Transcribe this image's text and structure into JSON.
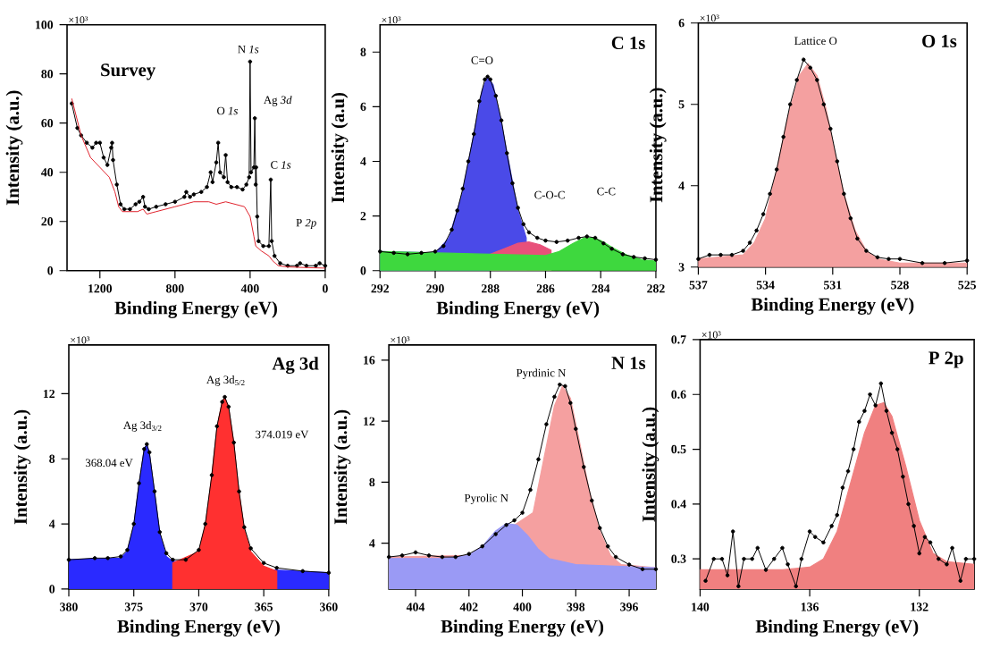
{
  "chart_data": [
    {
      "type": "line",
      "title": "Survey",
      "xlabel": "Binding Energy (eV)",
      "ylabel": "Intensity (a.u.)",
      "xlim": [
        1375,
        0
      ],
      "xticks": [
        1200,
        800,
        400,
        0
      ],
      "ylim": [
        0,
        100
      ],
      "yticks": [
        0,
        20,
        40,
        60,
        80,
        100
      ],
      "annotations": [
        "×10³",
        "N *1s*",
        "O *1s*",
        "Ag *3d*",
        "C *1s*",
        "P *2p*"
      ],
      "series": [
        {
          "color": "#000000",
          "marker": "circle",
          "x": [
            1350,
            1320,
            1300,
            1270,
            1240,
            1220,
            1200,
            1180,
            1160,
            1140,
            1135,
            1130,
            1110,
            1090,
            1070,
            1040,
            1010,
            990,
            970,
            960,
            940,
            900,
            850,
            800,
            750,
            740,
            720,
            700,
            660,
            630,
            610,
            600,
            580,
            570,
            560,
            540,
            530,
            520,
            500,
            470,
            440,
            420,
            405,
            400,
            395,
            380,
            375,
            370,
            368,
            362,
            355,
            330,
            300,
            290,
            285,
            270,
            240,
            200,
            150,
            134,
            100,
            50,
            30,
            0
          ],
          "values": [
            68,
            58,
            55,
            52,
            50,
            52,
            52,
            46,
            43,
            50,
            52,
            45,
            35,
            27,
            25,
            25,
            27,
            28,
            30,
            26,
            25,
            26,
            27,
            28,
            30,
            32,
            30,
            31,
            32,
            34,
            40,
            36,
            44,
            52,
            40,
            38,
            47,
            36,
            34,
            34,
            33,
            35,
            38,
            85,
            40,
            42,
            62,
            35,
            42,
            22,
            12,
            10,
            10,
            37,
            12,
            6,
            3,
            2,
            2,
            3,
            2,
            2,
            3,
            2
          ]
        },
        {
          "color": "#e0202a",
          "x": [
            1350,
            1300,
            1250,
            1200,
            1150,
            1120,
            1100,
            1080,
            1000,
            970,
            950,
            900,
            800,
            700,
            650,
            620,
            580,
            530,
            480,
            430,
            400,
            380,
            370,
            340,
            300,
            280,
            250,
            200,
            0
          ],
          "values": [
            70,
            55,
            46,
            42,
            38,
            32,
            26,
            24,
            24,
            25,
            23,
            24,
            26,
            28,
            28,
            28,
            27,
            28,
            27,
            26,
            22,
            14,
            10,
            8,
            6,
            4,
            2,
            1.5,
            1
          ]
        }
      ]
    },
    {
      "type": "line",
      "title": "C 1s",
      "xlabel": "Binding Energy (eV)",
      "ylabel": "Intensity (a.u)",
      "xlim": [
        292,
        282
      ],
      "xticks": [
        292,
        290,
        288,
        286,
        284,
        282
      ],
      "ylim": [
        0,
        9
      ],
      "yticks": [
        0,
        2,
        4,
        6,
        8
      ],
      "annotations": [
        "×10³",
        "C=O",
        "C-O-C",
        "C-C"
      ],
      "series": [
        {
          "type": "area",
          "color": "#4a4ae8",
          "x": [
            292,
            290,
            289.5,
            289,
            288.6,
            288.3,
            288.1,
            287.9,
            287.6,
            287.3,
            287.0,
            286.7
          ],
          "values": [
            0.7,
            0.65,
            1.2,
            2.9,
            5.0,
            6.6,
            7.1,
            6.8,
            5.4,
            3.8,
            2.2,
            1.2
          ]
        },
        {
          "type": "area",
          "color": "#e8507a",
          "x": [
            288,
            287.5,
            287,
            286.6,
            286.2,
            285.8
          ],
          "values": [
            0.6,
            0.8,
            1.0,
            1.05,
            0.95,
            0.75
          ]
        },
        {
          "type": "area",
          "color": "#3ed83e",
          "x": [
            292,
            290,
            288,
            286,
            285.5,
            285,
            284.6,
            284.3,
            284,
            283.5,
            283,
            282.5,
            282
          ],
          "values": [
            0.7,
            0.65,
            0.6,
            0.55,
            0.7,
            1.0,
            1.2,
            1.2,
            1.1,
            0.8,
            0.55,
            0.4,
            0.35
          ]
        },
        {
          "color": "#000000",
          "marker": "circle",
          "x": [
            292,
            291.5,
            291,
            290.5,
            290,
            289.7,
            289.4,
            289.2,
            289,
            288.8,
            288.6,
            288.4,
            288.2,
            288.1,
            288.0,
            287.8,
            287.6,
            287.4,
            287.2,
            287.0,
            286.8,
            286.6,
            286.3,
            286.0,
            285.6,
            285.2,
            284.8,
            284.5,
            284.2,
            283.9,
            283.6,
            283.2,
            282.8,
            282.4,
            282
          ],
          "values": [
            0.7,
            0.65,
            0.6,
            0.65,
            0.7,
            0.9,
            1.5,
            2.2,
            3.0,
            4.0,
            5.0,
            6.2,
            7.0,
            7.1,
            7.0,
            6.4,
            5.5,
            4.3,
            3.2,
            2.3,
            1.7,
            1.4,
            1.2,
            1.1,
            1.05,
            1.1,
            1.2,
            1.25,
            1.2,
            1.0,
            0.8,
            0.6,
            0.5,
            0.45,
            0.4
          ]
        }
      ]
    },
    {
      "type": "line",
      "title": "O 1s",
      "xlabel": "Binding Energy (eV)",
      "ylabel": "Intensity (a.u.)",
      "xlim": [
        537,
        525
      ],
      "xticks": [
        537,
        534,
        531,
        528,
        525
      ],
      "ylim": [
        3,
        6
      ],
      "yticks": [
        3,
        4,
        5,
        6
      ],
      "annotations": [
        "×10³",
        "Lattice O"
      ],
      "series": [
        {
          "type": "area",
          "color": "#f4a0a0",
          "x": [
            537,
            535,
            534.5,
            534,
            533.5,
            533,
            532.5,
            532.1,
            531.7,
            531.3,
            530.9,
            530.5,
            530,
            529.5,
            529,
            528,
            525
          ],
          "values": [
            3.1,
            3.15,
            3.3,
            3.6,
            4.2,
            4.85,
            5.35,
            5.5,
            5.35,
            4.95,
            4.4,
            3.9,
            3.45,
            3.2,
            3.1,
            3.05,
            3.05
          ]
        },
        {
          "color": "#000000",
          "marker": "circle",
          "x": [
            537,
            536.5,
            536,
            535.5,
            535,
            534.7,
            534.4,
            534.1,
            533.8,
            533.5,
            533.2,
            532.9,
            532.6,
            532.3,
            532.0,
            531.7,
            531.4,
            531.1,
            530.8,
            530.5,
            530.2,
            529.9,
            529.5,
            529,
            528.5,
            528,
            527,
            526,
            525
          ],
          "values": [
            3.1,
            3.15,
            3.15,
            3.15,
            3.2,
            3.3,
            3.45,
            3.65,
            3.9,
            4.2,
            4.6,
            5.0,
            5.3,
            5.55,
            5.45,
            5.3,
            5.0,
            4.7,
            4.3,
            3.9,
            3.6,
            3.35,
            3.2,
            3.12,
            3.1,
            3.1,
            3.05,
            3.05,
            3.08
          ]
        }
      ]
    },
    {
      "type": "line",
      "title": "Ag 3d",
      "xlabel": "Binding Energy (eV)",
      "ylabel": "Intensity (a.u.)",
      "xlim": [
        380,
        360
      ],
      "xticks": [
        380,
        375,
        370,
        365,
        360
      ],
      "ylim": [
        0,
        15
      ],
      "yticks": [
        0,
        4,
        8,
        12
      ],
      "annotations": [
        "×10³",
        "Ag 3d$_{3/2}$",
        "Ag 3d$_{5/2}$",
        "368.04 eV",
        "374.019 eV"
      ],
      "series": [
        {
          "type": "area",
          "color": "#2a2aff",
          "x": [
            380,
            376,
            375.5,
            375,
            374.6,
            374.2,
            374.0,
            373.8,
            373.4,
            373,
            372.5,
            372,
            365,
            360
          ],
          "values": [
            1.8,
            1.9,
            2.3,
            3.9,
            6.4,
            8.6,
            8.9,
            8.3,
            5.9,
            3.4,
            2.0,
            1.7,
            1.2,
            1.0
          ]
        },
        {
          "type": "area",
          "color": "#ff3030",
          "x": [
            372,
            370,
            369.5,
            369,
            368.6,
            368.2,
            368,
            367.7,
            367.3,
            366.9,
            366.5,
            366,
            365,
            364
          ],
          "values": [
            1.6,
            2.3,
            3.9,
            6.9,
            9.9,
            11.5,
            11.8,
            11.1,
            8.9,
            5.9,
            3.7,
            2.3,
            1.4,
            1.1
          ]
        },
        {
          "color": "#000000",
          "marker": "circle",
          "x": [
            380,
            378,
            377,
            376,
            375.5,
            375,
            374.6,
            374.2,
            374.0,
            373.8,
            373.4,
            373,
            372.5,
            372,
            371,
            370,
            369.5,
            369,
            368.6,
            368.2,
            368.0,
            367.7,
            367.3,
            366.9,
            366.5,
            366,
            365,
            364,
            362,
            360
          ],
          "values": [
            1.8,
            1.9,
            1.9,
            2.0,
            2.4,
            4.0,
            6.5,
            8.6,
            8.9,
            8.4,
            6.0,
            3.5,
            2.2,
            1.8,
            1.8,
            2.4,
            4.0,
            7.0,
            10.0,
            11.5,
            11.8,
            11.2,
            9.0,
            6.0,
            3.8,
            2.5,
            1.6,
            1.3,
            1.1,
            1.0
          ]
        }
      ]
    },
    {
      "type": "line",
      "title": "N 1s",
      "xlabel": "Binding Energy (eV)",
      "ylabel": "Intensity (a.u.)",
      "xlim": [
        405,
        395
      ],
      "xticks": [
        404,
        402,
        400,
        398,
        396
      ],
      "ylim": [
        1,
        17
      ],
      "yticks": [
        4,
        8,
        12,
        16
      ],
      "annotations": [
        "×10³",
        "Pyrdinic N",
        "Pyrolic N"
      ],
      "series": [
        {
          "type": "area",
          "color": "#f5a0a0",
          "x": [
            405,
            402,
            399.6,
            399.2,
            398.8,
            398.5,
            398.2,
            397.9,
            397.5,
            397.1,
            396.7,
            396.3,
            395
          ],
          "values": [
            3.1,
            3.2,
            6.0,
            9.5,
            13.0,
            14.3,
            13.5,
            11.0,
            7.5,
            4.8,
            3.2,
            2.6,
            2.4
          ]
        },
        {
          "type": "area",
          "color": "#9a9af5",
          "x": [
            405,
            403,
            402,
            401.5,
            401,
            400.6,
            400.2,
            399.8,
            399.4,
            399,
            398,
            395
          ],
          "values": [
            3.0,
            3.0,
            3.2,
            3.8,
            4.8,
            5.3,
            5.2,
            4.5,
            3.6,
            3.0,
            2.6,
            2.4
          ]
        },
        {
          "color": "#000000",
          "marker": "circle",
          "x": [
            405,
            404.5,
            404,
            403.5,
            403,
            402.5,
            402,
            401.5,
            401,
            400.6,
            400.3,
            400,
            399.7,
            399.4,
            399.1,
            398.8,
            398.6,
            398.4,
            398.2,
            398.0,
            397.7,
            397.4,
            397.1,
            396.8,
            396.5,
            396,
            395.5,
            395
          ],
          "values": [
            3.1,
            3.2,
            3.4,
            3.2,
            3.1,
            3.1,
            3.3,
            3.8,
            4.6,
            5.2,
            5.5,
            6.0,
            7.5,
            9.5,
            11.8,
            13.6,
            14.4,
            14.3,
            13.2,
            11.5,
            9.0,
            6.8,
            5.0,
            3.8,
            3.1,
            2.6,
            2.3,
            2.3
          ]
        }
      ]
    },
    {
      "type": "line",
      "title": "P 2p",
      "xlabel": "Binding Energy (eV)",
      "ylabel": "Intensity (a.u.)",
      "xlim": [
        140,
        130
      ],
      "xticks": [
        140,
        136,
        132
      ],
      "ylim": [
        0.245,
        0.7
      ],
      "yticks": [
        0.3,
        0.4,
        0.5,
        0.6,
        0.7
      ],
      "annotations": [
        "×10³"
      ],
      "series": [
        {
          "type": "area",
          "color": "#f08080",
          "x": [
            140,
            137,
            136,
            135.5,
            135,
            134.5,
            134,
            133.6,
            133.3,
            133,
            132.5,
            132,
            131.5,
            131,
            130
          ],
          "values": [
            0.28,
            0.28,
            0.285,
            0.3,
            0.35,
            0.44,
            0.53,
            0.58,
            0.585,
            0.56,
            0.47,
            0.37,
            0.31,
            0.295,
            0.29
          ]
        },
        {
          "color": "#000000",
          "marker": "circle",
          "x": [
            139.8,
            139.5,
            139.2,
            139,
            138.8,
            138.6,
            138.4,
            138.1,
            137.9,
            137.6,
            137.3,
            137,
            136.8,
            136.5,
            136.3,
            136,
            135.8,
            135.5,
            135.2,
            135,
            134.8,
            134.6,
            134.4,
            134.2,
            134,
            133.8,
            133.6,
            133.4,
            133.2,
            133,
            132.8,
            132.6,
            132.4,
            132.2,
            132,
            131.8,
            131.6,
            131.3,
            131,
            130.8,
            130.5,
            130.3,
            130
          ],
          "values": [
            0.26,
            0.3,
            0.3,
            0.27,
            0.35,
            0.25,
            0.3,
            0.3,
            0.32,
            0.28,
            0.3,
            0.32,
            0.29,
            0.25,
            0.3,
            0.35,
            0.34,
            0.33,
            0.36,
            0.38,
            0.43,
            0.46,
            0.5,
            0.55,
            0.57,
            0.6,
            0.58,
            0.62,
            0.57,
            0.53,
            0.5,
            0.45,
            0.4,
            0.36,
            0.31,
            0.34,
            0.33,
            0.3,
            0.29,
            0.32,
            0.26,
            0.3,
            0.3
          ]
        }
      ]
    }
  ]
}
